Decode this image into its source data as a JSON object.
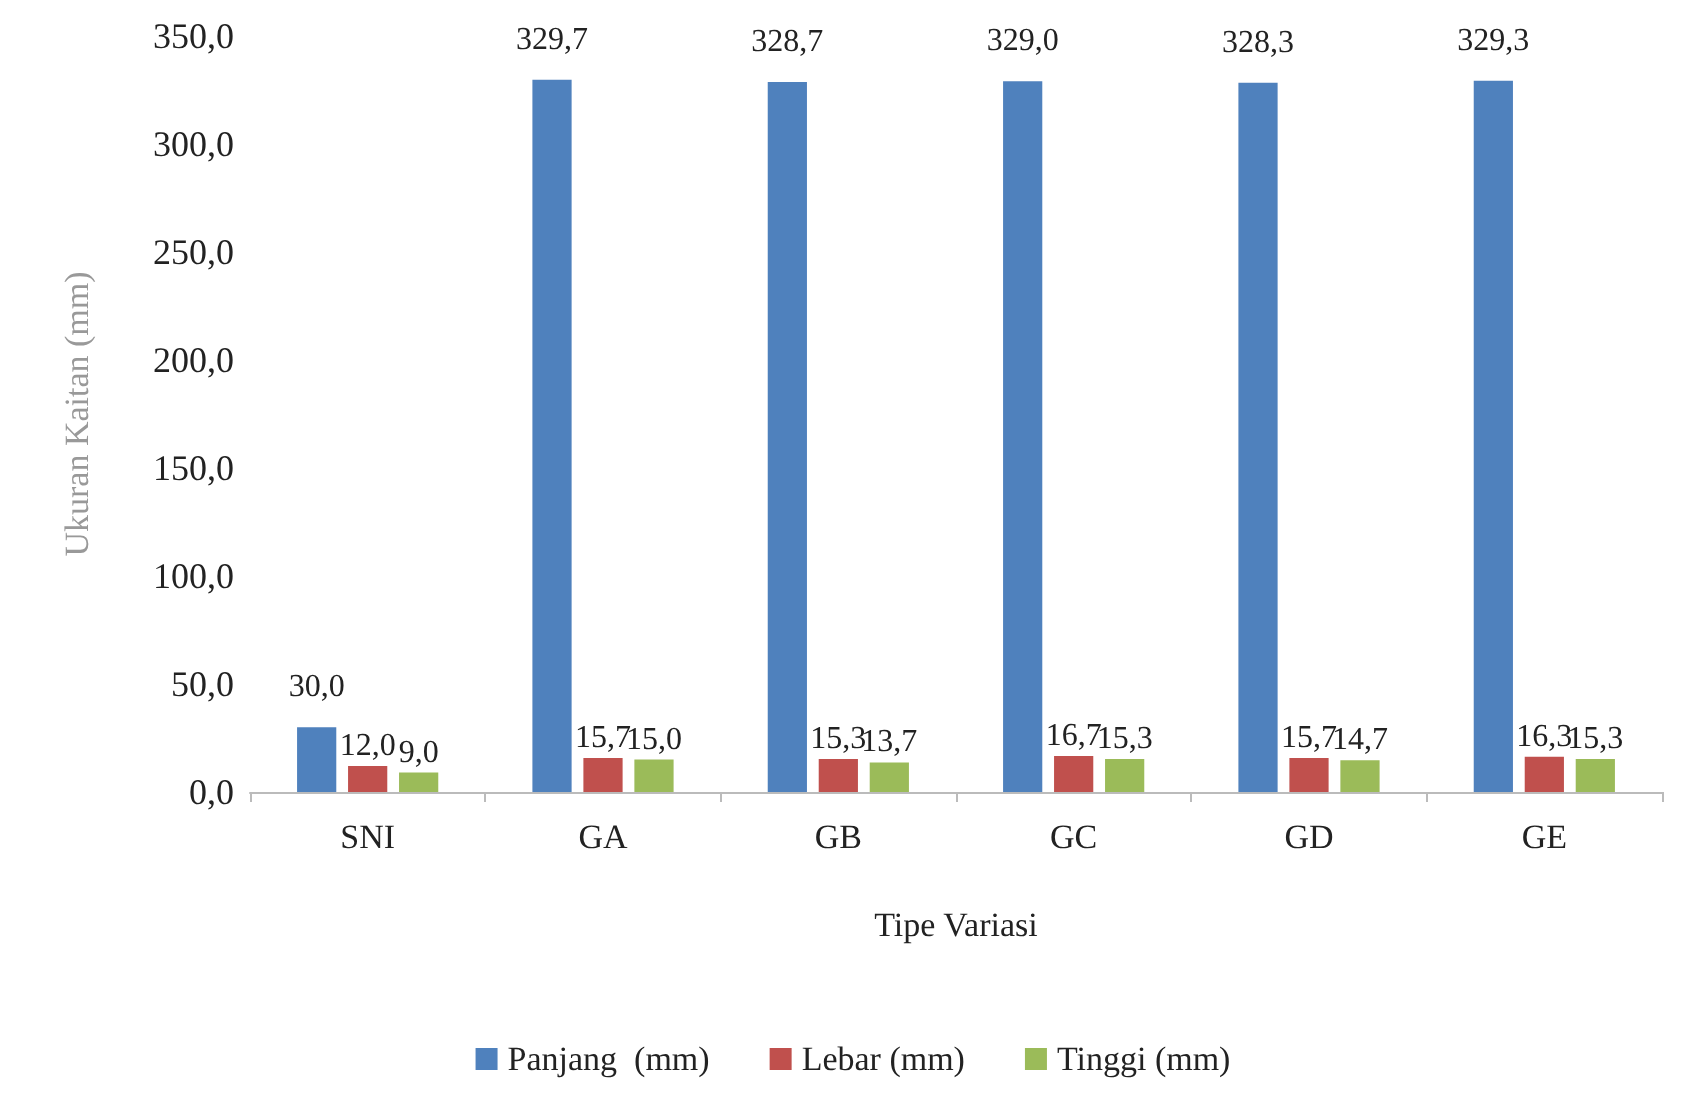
{
  "chart_data": {
    "type": "bar",
    "xlabel": "Tipe Variasi",
    "ylabel": "Ukuran Kaitan (mm)",
    "categories": [
      "SNI",
      "GA",
      "GB",
      "GC",
      "GD",
      "GE"
    ],
    "series": [
      {
        "name": "Panjang  (mm)",
        "color": "#4f81bd",
        "values": [
          30.0,
          329.7,
          328.7,
          329.0,
          328.3,
          329.3
        ],
        "value_labels": [
          "30,0",
          "329,7",
          "328,7",
          "329,0",
          "328,3",
          "329,3"
        ]
      },
      {
        "name": "Lebar (mm)",
        "color": "#c0504d",
        "values": [
          12.0,
          15.7,
          15.3,
          16.7,
          15.7,
          16.3
        ],
        "value_labels": [
          "12,0",
          "15,7",
          "15,3",
          "16,7",
          "15,7",
          "16,3"
        ]
      },
      {
        "name": "Tinggi (mm)",
        "color": "#9bbb59",
        "values": [
          9.0,
          15.0,
          13.7,
          15.3,
          14.7,
          15.3
        ],
        "value_labels": [
          "9,0",
          "15,0",
          "13,7",
          "15,3",
          "14,7",
          "15,3"
        ]
      }
    ],
    "ylim": [
      0,
      350
    ],
    "yticks": [
      {
        "value": 0,
        "label": "0,0"
      },
      {
        "value": 50,
        "label": "50,0"
      },
      {
        "value": 100,
        "label": "100,0"
      },
      {
        "value": 150,
        "label": "150,0"
      },
      {
        "value": 200,
        "label": "200,0"
      },
      {
        "value": 250,
        "label": "250,0"
      },
      {
        "value": 300,
        "label": "300,0"
      },
      {
        "value": 350,
        "label": "350,0"
      }
    ],
    "grid": false,
    "legend": "bottom"
  }
}
